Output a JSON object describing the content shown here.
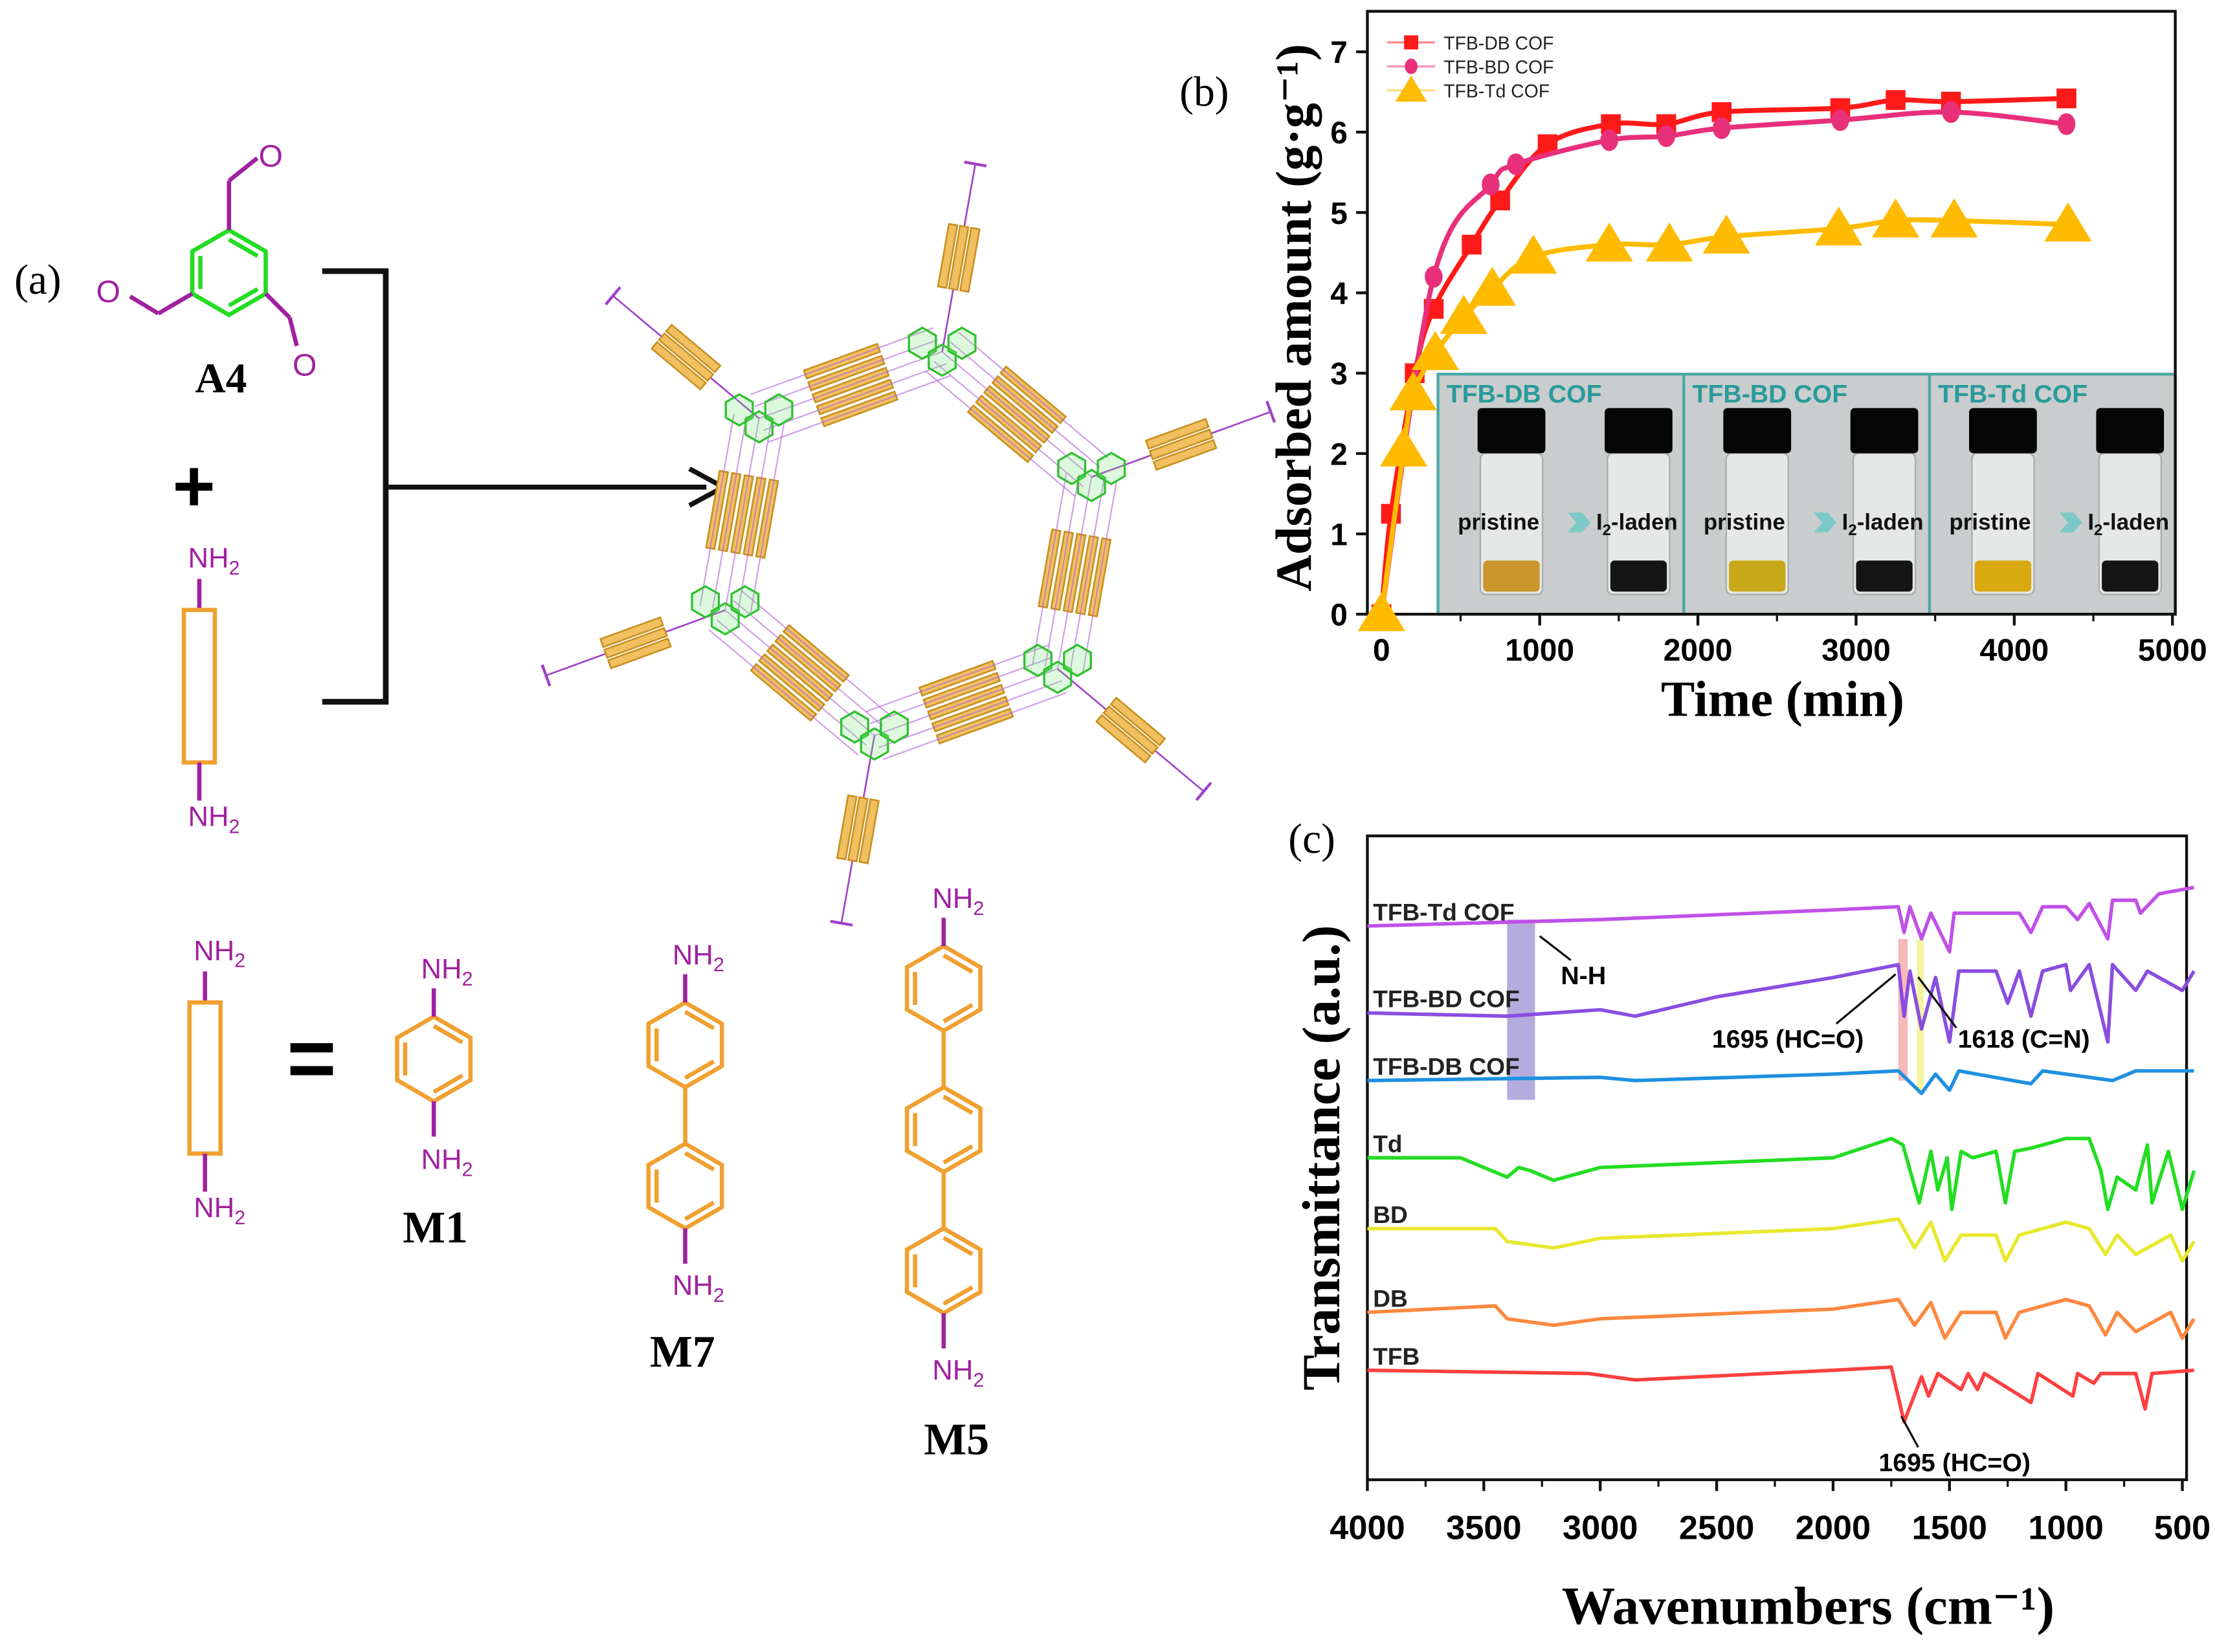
{
  "panel_a": {
    "label": "(a)",
    "aldehyde_label": "A4",
    "oxygen": "O",
    "plus": "+",
    "equals": "=",
    "amine": "NH",
    "amine_sub": "2",
    "monomers": [
      "M1",
      "M7",
      "M5"
    ],
    "colors": {
      "aldehyde_arm": "#a020a0",
      "ring_a4": "#22dd22",
      "linker": "#f0a030",
      "amine": "#a020a0"
    }
  },
  "chart_data": [
    {
      "panel_label": "(b)",
      "type": "line",
      "xlabel": "Time (min)",
      "ylabel": "Adsorbed amount (g·g⁻¹)",
      "xlim": [
        -90,
        5000
      ],
      "ylim": [
        0,
        7.5
      ],
      "xticks": [
        "0",
        "1000",
        "2000",
        "3000",
        "4000",
        "5000"
      ],
      "yticks": [
        "0",
        "1",
        "2",
        "3",
        "4",
        "5",
        "6",
        "7"
      ],
      "legend_position": "top-left",
      "series": [
        {
          "name": "TFB-DB COF",
          "color": "#ff1a1a",
          "marker": "square",
          "points": [
            [
              0,
              0
            ],
            [
              60,
              1.25
            ],
            [
              210,
              3.0
            ],
            [
              330,
              3.8
            ],
            [
              570,
              4.6
            ],
            [
              750,
              5.15
            ],
            [
              1050,
              5.85
            ],
            [
              1450,
              6.1
            ],
            [
              1800,
              6.1
            ],
            [
              2150,
              6.25
            ],
            [
              2900,
              6.3
            ],
            [
              3250,
              6.4
            ],
            [
              3600,
              6.38
            ],
            [
              4330,
              6.42
            ]
          ]
        },
        {
          "name": "TFB-BD COF",
          "color": "#e8307a",
          "marker": "circle",
          "points": [
            [
              0,
              0
            ],
            [
              330,
              4.2
            ],
            [
              690,
              5.35
            ],
            [
              850,
              5.6
            ],
            [
              1440,
              5.9
            ],
            [
              1800,
              5.95
            ],
            [
              2150,
              6.05
            ],
            [
              2900,
              6.15
            ],
            [
              3600,
              6.25
            ],
            [
              4330,
              6.1
            ]
          ]
        },
        {
          "name": "TFB-Td COF",
          "color": "#ffbb00",
          "marker": "triangle",
          "points": [
            [
              0,
              0
            ],
            [
              140,
              2.05
            ],
            [
              200,
              2.75
            ],
            [
              340,
              3.25
            ],
            [
              520,
              3.7
            ],
            [
              700,
              4.05
            ],
            [
              960,
              4.45
            ],
            [
              1440,
              4.6
            ],
            [
              1820,
              4.6
            ],
            [
              2180,
              4.7
            ],
            [
              2890,
              4.8
            ],
            [
              3250,
              4.9
            ],
            [
              3620,
              4.9
            ],
            [
              4340,
              4.85
            ]
          ]
        }
      ],
      "inset": {
        "panels": [
          {
            "title": "TFB-DB COF",
            "powder": "#c8962a"
          },
          {
            "title": "TFB-BD COF",
            "powder": "#c8a818"
          },
          {
            "title": "TFB-Td COF",
            "powder": "#d8aa10"
          }
        ],
        "pristine": "pristine",
        "laden_main": "I",
        "laden_sub": "2",
        "laden_rest": "-laden",
        "title_color": "#2a9a9a"
      }
    },
    {
      "panel_label": "(c)",
      "type": "line",
      "xlabel": "Wavenumbers (cm⁻¹)",
      "ylabel": "Transmittance (a.u.)",
      "xlim": [
        4000,
        480
      ],
      "x_reversed": true,
      "ylim": [
        0,
        100
      ],
      "xticks": [
        "4000",
        "3500",
        "3000",
        "2500",
        "2000",
        "1500",
        "1000",
        "500"
      ],
      "series": [
        {
          "name": "TFB-Td COF",
          "color": "#c050e8",
          "points": [
            [
              4000,
              86
            ],
            [
              3000,
              87
            ],
            [
              2000,
              88.5
            ],
            [
              1720,
              89
            ],
            [
              1695,
              85
            ],
            [
              1670,
              89
            ],
            [
              1620,
              84
            ],
            [
              1580,
              88
            ],
            [
              1500,
              82
            ],
            [
              1480,
              88
            ],
            [
              1200,
              88
            ],
            [
              1150,
              85
            ],
            [
              1100,
              89
            ],
            [
              1000,
              89
            ],
            [
              950,
              87
            ],
            [
              900,
              89.5
            ],
            [
              820,
              84
            ],
            [
              800,
              90
            ],
            [
              700,
              90
            ],
            [
              680,
              88
            ],
            [
              600,
              91
            ],
            [
              450,
              92
            ]
          ]
        },
        {
          "name": "TFB-BD COF",
          "color": "#8a4de0",
          "points": [
            [
              4000,
              72.5
            ],
            [
              3400,
              72
            ],
            [
              3000,
              73
            ],
            [
              2850,
              72
            ],
            [
              2500,
              75
            ],
            [
              2000,
              78
            ],
            [
              1720,
              80
            ],
            [
              1695,
              72
            ],
            [
              1670,
              79
            ],
            [
              1620,
              70
            ],
            [
              1560,
              78
            ],
            [
              1500,
              68
            ],
            [
              1460,
              79
            ],
            [
              1300,
              79
            ],
            [
              1250,
              74
            ],
            [
              1200,
              79
            ],
            [
              1150,
              72
            ],
            [
              1100,
              79
            ],
            [
              1000,
              80
            ],
            [
              980,
              76
            ],
            [
              900,
              80
            ],
            [
              820,
              68
            ],
            [
              800,
              80
            ],
            [
              700,
              76
            ],
            [
              650,
              79
            ],
            [
              500,
              76
            ],
            [
              450,
              79
            ]
          ]
        },
        {
          "name": "TFB-DB COF",
          "color": "#1e90e0",
          "points": [
            [
              4000,
              62
            ],
            [
              3000,
              62.5
            ],
            [
              2850,
              62
            ],
            [
              2000,
              63
            ],
            [
              1720,
              63.5
            ],
            [
              1620,
              60
            ],
            [
              1560,
              63
            ],
            [
              1500,
              60.5
            ],
            [
              1460,
              63.5
            ],
            [
              1150,
              61.5
            ],
            [
              1100,
              63.5
            ],
            [
              800,
              62
            ],
            [
              700,
              63.5
            ],
            [
              450,
              63.5
            ]
          ]
        },
        {
          "name": "Td",
          "color": "#22dd22",
          "points": [
            [
              4000,
              50
            ],
            [
              3600,
              50
            ],
            [
              3400,
              47
            ],
            [
              3350,
              48.5
            ],
            [
              3300,
              48
            ],
            [
              3200,
              46.5
            ],
            [
              3000,
              48.5
            ],
            [
              2000,
              50
            ],
            [
              1750,
              53
            ],
            [
              1700,
              52
            ],
            [
              1630,
              43
            ],
            [
              1580,
              51
            ],
            [
              1550,
              45
            ],
            [
              1510,
              50
            ],
            [
              1490,
              42
            ],
            [
              1450,
              51
            ],
            [
              1400,
              50
            ],
            [
              1300,
              51
            ],
            [
              1260,
              43
            ],
            [
              1220,
              51
            ],
            [
              1150,
              51.5
            ],
            [
              1000,
              53
            ],
            [
              900,
              53
            ],
            [
              850,
              48
            ],
            [
              820,
              42
            ],
            [
              780,
              47
            ],
            [
              700,
              45
            ],
            [
              650,
              52
            ],
            [
              630,
              43
            ],
            [
              560,
              51
            ],
            [
              500,
              42
            ],
            [
              450,
              48
            ]
          ]
        },
        {
          "name": "BD",
          "color": "#e8e830",
          "points": [
            [
              4000,
              39
            ],
            [
              3450,
              39
            ],
            [
              3400,
              37
            ],
            [
              3200,
              36
            ],
            [
              3000,
              37.5
            ],
            [
              2000,
              39
            ],
            [
              1720,
              40.5
            ],
            [
              1650,
              36
            ],
            [
              1580,
              40
            ],
            [
              1520,
              34
            ],
            [
              1450,
              38
            ],
            [
              1300,
              38
            ],
            [
              1260,
              34
            ],
            [
              1200,
              38
            ],
            [
              1000,
              40
            ],
            [
              900,
              39
            ],
            [
              830,
              35
            ],
            [
              780,
              38
            ],
            [
              700,
              35
            ],
            [
              550,
              38
            ],
            [
              500,
              34
            ],
            [
              450,
              37
            ]
          ]
        },
        {
          "name": "DB",
          "color": "#ff8840",
          "points": [
            [
              4000,
              26
            ],
            [
              3450,
              27
            ],
            [
              3400,
              25
            ],
            [
              3200,
              24
            ],
            [
              3000,
              25
            ],
            [
              2000,
              26.5
            ],
            [
              1720,
              28
            ],
            [
              1650,
              24
            ],
            [
              1580,
              27.5
            ],
            [
              1520,
              22
            ],
            [
              1450,
              26
            ],
            [
              1300,
              26
            ],
            [
              1260,
              22
            ],
            [
              1200,
              26
            ],
            [
              1000,
              28
            ],
            [
              900,
              27
            ],
            [
              830,
              22.5
            ],
            [
              780,
              26
            ],
            [
              700,
              23
            ],
            [
              550,
              26
            ],
            [
              500,
              22
            ],
            [
              450,
              25
            ]
          ]
        },
        {
          "name": "TFB",
          "color": "#ff4040",
          "points": [
            [
              4000,
              17
            ],
            [
              3050,
              16.5
            ],
            [
              2850,
              15.5
            ],
            [
              2000,
              17
            ],
            [
              1750,
              17.5
            ],
            [
              1695,
              9
            ],
            [
              1620,
              16
            ],
            [
              1590,
              13
            ],
            [
              1550,
              16.5
            ],
            [
              1450,
              14
            ],
            [
              1420,
              16.5
            ],
            [
              1380,
              14
            ],
            [
              1350,
              16.5
            ],
            [
              1150,
              12
            ],
            [
              1120,
              16.5
            ],
            [
              970,
              13
            ],
            [
              950,
              16.5
            ],
            [
              880,
              15
            ],
            [
              850,
              16.5
            ],
            [
              700,
              16.5
            ],
            [
              660,
              11
            ],
            [
              630,
              16.5
            ],
            [
              450,
              17
            ]
          ]
        }
      ],
      "bands": [
        {
          "from": 3400,
          "to": 3280,
          "color": "#9a90d0"
        },
        {
          "from": 1720,
          "to": 1680,
          "color": "#f4a0a0"
        },
        {
          "from": 1640,
          "to": 1610,
          "color": "#f0f080"
        }
      ],
      "annotations": {
        "nh": "N-H",
        "hco_cof": "1695 (HC=O)",
        "cn": "1618 (C=N)",
        "hco_tfb": "1695 (HC=O)"
      }
    }
  ]
}
